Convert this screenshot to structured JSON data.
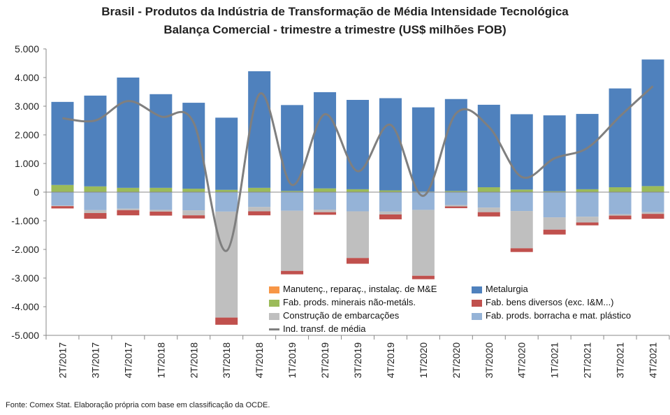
{
  "chart_data": {
    "type": "bar",
    "title": "Brasil - Produtos da Indústria de Transformação de Média Intensidade Tecnológica",
    "subtitle": "Balança Comercial - trimestre a trimestre (US$ milhões FOB)",
    "categories": [
      "2T/2017",
      "3T/2017",
      "4T/2017",
      "1T/2018",
      "2T/2018",
      "3T/2018",
      "4T/2018",
      "1T/2019",
      "2T/2019",
      "3T/2019",
      "4T/2019",
      "1T/2020",
      "2T/2020",
      "3T/2020",
      "4T/2020",
      "1T/2021",
      "2T/2021",
      "3T/2021",
      "4T/2021"
    ],
    "ylim": [
      -5000,
      5000
    ],
    "yticks": [
      -5000,
      -4000,
      -3000,
      -2000,
      -1000,
      0,
      1000,
      2000,
      3000,
      4000,
      5000
    ],
    "ytick_labels": [
      "-5.000",
      "-4.000",
      "-3.000",
      "-2.000",
      "-1.000",
      "0",
      "1.000",
      "2.000",
      "3.000",
      "4.000",
      "5.000"
    ],
    "grid": false,
    "legend_position": "bottom-right inside",
    "series": [
      {
        "name": "Manutenç., reparaç., instalaç. de M&E",
        "kind": "bar",
        "color": "#f79646",
        "values": [
          0,
          0,
          0,
          0,
          0,
          0,
          0,
          0,
          0,
          0,
          0,
          0,
          0,
          0,
          0,
          0,
          0,
          0,
          0
        ]
      },
      {
        "name": "Fab. prods. minerais não-metáls.",
        "kind": "bar",
        "color": "#9bbb59",
        "values": [
          250,
          200,
          150,
          150,
          120,
          80,
          150,
          40,
          130,
          100,
          60,
          20,
          40,
          170,
          90,
          30,
          100,
          170,
          210
        ]
      },
      {
        "name": "Construção de embarcações",
        "kind": "bar",
        "color": "#bfbfbf",
        "values": [
          -20,
          -100,
          -50,
          -60,
          -170,
          -3700,
          -150,
          -2100,
          -90,
          -1630,
          -100,
          -2300,
          -50,
          -160,
          -1300,
          -430,
          -200,
          -50,
          -60
        ]
      },
      {
        "name": "Ind. transf. de média",
        "kind": "line",
        "color": "#7f7f7f",
        "values": [
          2580,
          2500,
          3180,
          2640,
          2420,
          -2050,
          3420,
          250,
          2720,
          730,
          2350,
          -130,
          2750,
          2280,
          530,
          1180,
          1540,
          2650,
          3700
        ]
      },
      {
        "name": "Metalurgia",
        "kind": "bar",
        "color": "#4f81bd",
        "values": [
          2900,
          3170,
          3850,
          3270,
          3000,
          2520,
          4070,
          3000,
          3360,
          3120,
          3220,
          2940,
          3210,
          2880,
          2630,
          2650,
          2630,
          3450,
          4420
        ]
      },
      {
        "name": "Fab. bens diversos (exc. I&M...)",
        "kind": "bar",
        "color": "#c0504d",
        "values": [
          -80,
          -200,
          -180,
          -140,
          -110,
          -250,
          -140,
          -120,
          -90,
          -200,
          -170,
          -120,
          -60,
          -150,
          -130,
          -170,
          -100,
          -130,
          -170
        ]
      },
      {
        "name": "Fab. prods. borracha e mat. plástico",
        "kind": "bar",
        "color": "#95b3d7",
        "values": [
          -470,
          -630,
          -580,
          -620,
          -640,
          -680,
          -520,
          -650,
          -610,
          -670,
          -680,
          -620,
          -450,
          -540,
          -660,
          -880,
          -860,
          -770,
          -700
        ]
      }
    ]
  },
  "source": "Fonte: Comex Stat. Elaboração própria com base em classificação da OCDE."
}
